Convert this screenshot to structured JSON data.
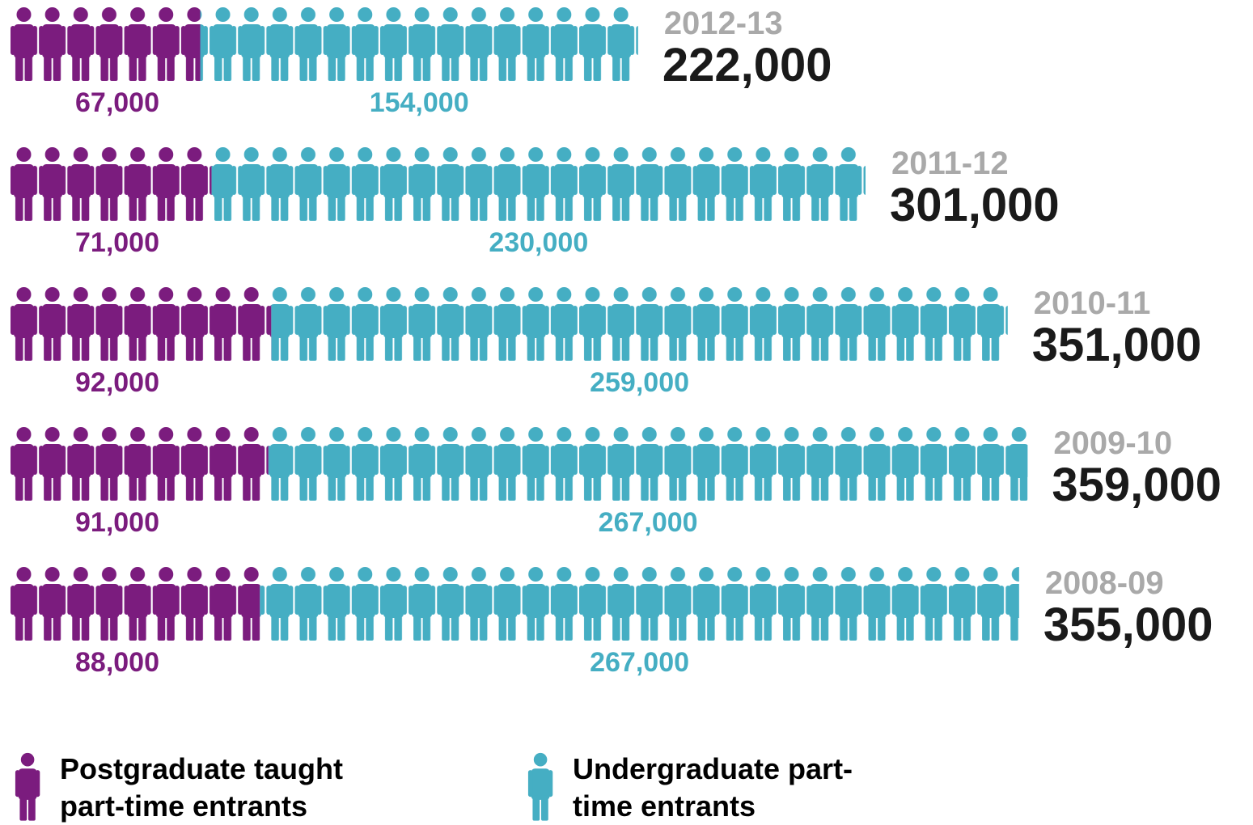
{
  "chart_data": {
    "type": "pictograph",
    "categories": [
      "2012-13",
      "2011-12",
      "2010-11",
      "2009-10",
      "2008-09"
    ],
    "totals": [
      "222,000",
      "301,000",
      "351,000",
      "359,000",
      "355,000"
    ],
    "series": [
      {
        "name": "Postgraduate taught part-time entrants",
        "color": "#7b1c7e",
        "values": [
          67000,
          71000,
          92000,
          91000,
          88000
        ],
        "value_labels": [
          "67,000",
          "71,000",
          "92,000",
          "91,000",
          "88,000"
        ]
      },
      {
        "name": "Undergraduate part-time entrants",
        "color": "#45aec3",
        "values": [
          154000,
          230000,
          259000,
          267000,
          267000
        ],
        "value_labels": [
          "154,000",
          "230,000",
          "259,000",
          "267,000",
          "267,000"
        ]
      }
    ]
  }
}
